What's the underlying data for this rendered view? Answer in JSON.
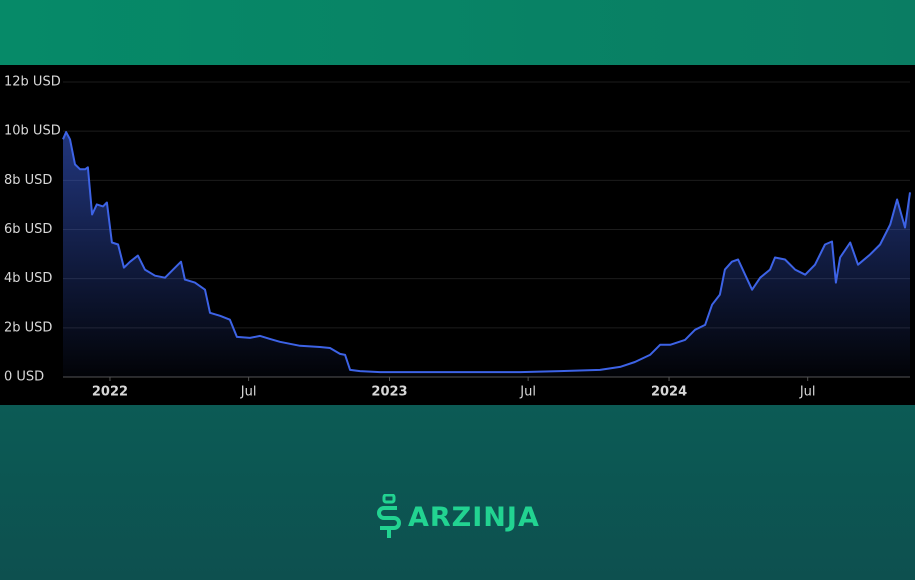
{
  "chart_data": {
    "type": "line",
    "color": "#3d63e6",
    "grid": true,
    "x": [
      2021.832,
      2021.843,
      2021.857,
      2021.875,
      2021.893,
      2021.911,
      2021.921,
      2021.936,
      2021.953,
      2021.975,
      2021.989,
      2022.007,
      2022.029,
      2022.05,
      2022.072,
      2022.1,
      2022.125,
      2022.161,
      2022.197,
      2022.233,
      2022.254,
      2022.268,
      2022.304,
      2022.34,
      2022.358,
      2022.394,
      2022.429,
      2022.454,
      2022.501,
      2022.537,
      2022.572,
      2022.608,
      2022.68,
      2022.751,
      2022.787,
      2022.823,
      2022.841,
      2022.859,
      2022.894,
      2022.966,
      2023.038,
      2023.181,
      2023.324,
      2023.467,
      2023.61,
      2023.753,
      2023.825,
      2023.878,
      2023.932,
      2023.968,
      2024.004,
      2024.057,
      2024.093,
      2024.129,
      2024.154,
      2024.182,
      2024.2,
      2024.225,
      2024.247,
      2024.272,
      2024.297,
      2024.326,
      2024.361,
      2024.379,
      2024.415,
      2024.451,
      2024.487,
      2024.522,
      2024.558,
      2024.583,
      2024.597,
      2024.612,
      2024.648,
      2024.676,
      2024.719,
      2024.755,
      2024.791,
      2024.816,
      2024.844,
      2024.862
    ],
    "values": [
      9.67,
      9.96,
      9.67,
      8.65,
      8.45,
      8.45,
      8.53,
      6.61,
      7.02,
      6.94,
      7.1,
      5.47,
      5.39,
      4.45,
      4.69,
      4.94,
      4.37,
      4.12,
      4.04,
      4.45,
      4.69,
      3.96,
      3.84,
      3.55,
      2.61,
      2.49,
      2.33,
      1.63,
      1.59,
      1.67,
      1.55,
      1.43,
      1.27,
      1.22,
      1.18,
      0.94,
      0.9,
      0.29,
      0.24,
      0.2,
      0.2,
      0.2,
      0.2,
      0.2,
      0.24,
      0.29,
      0.41,
      0.61,
      0.9,
      1.31,
      1.31,
      1.51,
      1.92,
      2.12,
      2.94,
      3.35,
      4.37,
      4.69,
      4.78,
      4.16,
      3.55,
      4.04,
      4.37,
      4.86,
      4.78,
      4.37,
      4.16,
      4.57,
      5.39,
      5.51,
      3.84,
      4.86,
      5.47,
      4.57,
      4.98,
      5.39,
      6.2,
      7.22,
      6.08,
      7.51
    ],
    "xlim": [
      2021.832,
      2024.862
    ],
    "xticks": [
      2022,
      {
        "value": 2022.496,
        "label": "Jul"
      },
      2023,
      {
        "value": 2023.496,
        "label": "Jul"
      },
      2024,
      {
        "value": 2024.496,
        "label": "Jul"
      }
    ],
    "ylim": [
      0,
      12
    ],
    "yticks": [
      {
        "value": 0,
        "label": "0 USD"
      },
      {
        "value": 2,
        "label": "2b USD"
      },
      {
        "value": 4,
        "label": "4b USD"
      },
      {
        "value": 6,
        "label": "6b USD"
      },
      {
        "value": 8,
        "label": "8b USD"
      },
      {
        "value": 10,
        "label": "10b USD"
      },
      {
        "value": 12,
        "label": "12b USD"
      }
    ]
  },
  "brand": {
    "name": "ARZINJA"
  }
}
